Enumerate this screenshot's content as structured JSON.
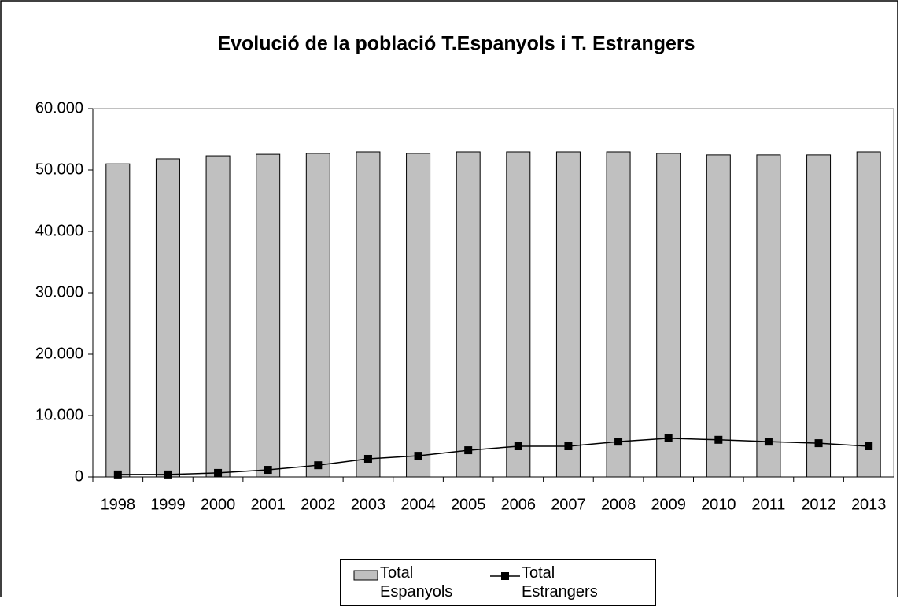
{
  "chart_data": {
    "type": "bar-line",
    "title": "Evolució de la població T.Espanyols i T. Estrangers",
    "categories": [
      "1998",
      "1999",
      "2000",
      "2001",
      "2002",
      "2003",
      "2004",
      "2005",
      "2006",
      "2007",
      "2008",
      "2009",
      "2010",
      "2011",
      "2012",
      "2013"
    ],
    "series": [
      {
        "name": "Total Espanyols",
        "type": "bar",
        "color": "#c0c0c0",
        "values": [
          51000,
          51800,
          52300,
          52550,
          52700,
          52950,
          52700,
          52950,
          52950,
          52950,
          52950,
          52700,
          52450,
          52450,
          52450,
          52950
        ]
      },
      {
        "name": "Total Estrangers",
        "type": "line",
        "color": "#000000",
        "values": [
          400,
          400,
          650,
          1150,
          1900,
          2950,
          3450,
          4350,
          5000,
          5000,
          5750,
          6300,
          6050,
          5750,
          5500,
          5000
        ]
      }
    ],
    "ylim": [
      0,
      60000
    ],
    "yticks": [
      0,
      {
        "value": 10000,
        "label": "10.000"
      },
      {
        "value": 20000,
        "label": "20.000"
      },
      {
        "value": 30000,
        "label": "30.000"
      },
      {
        "value": 40000,
        "label": "40.000"
      },
      {
        "value": 50000,
        "label": "50.000"
      },
      {
        "value": 60000,
        "label": "60.000"
      }
    ],
    "grid": false
  }
}
